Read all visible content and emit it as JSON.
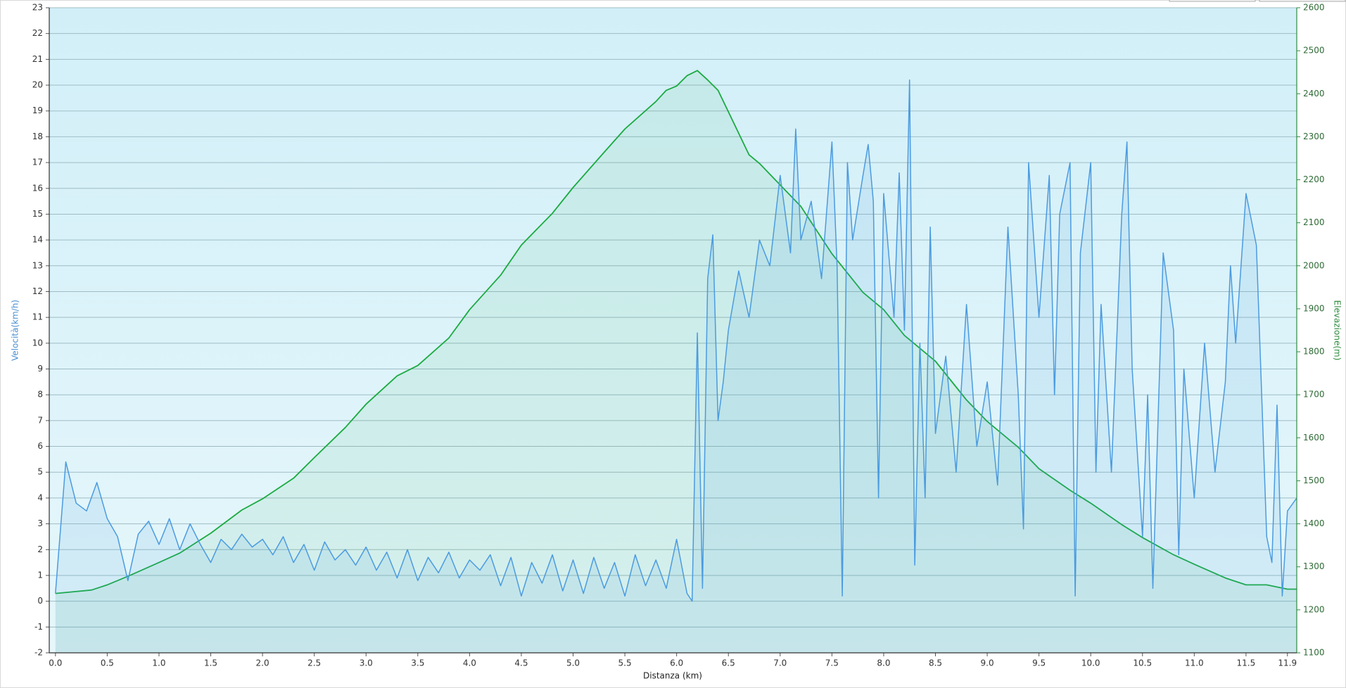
{
  "chart_data": {
    "type": "line",
    "xlabel": "Distanza  (km)",
    "ylabel": "Velocità(km/h)",
    "y2label": "Elevazione(m)",
    "xlim": [
      -0.06,
      11.99
    ],
    "ylim": [
      -2,
      23
    ],
    "y2lim": [
      1100,
      2600
    ],
    "xticks": [
      {
        "value": 0,
        "label": "0.0"
      },
      0.5,
      {
        "value": 1,
        "label": "1.0"
      },
      1.5,
      {
        "value": 2,
        "label": "2.0"
      },
      2.5,
      {
        "value": 3,
        "label": "3.0"
      },
      3.5,
      {
        "value": 4,
        "label": "4.0"
      },
      4.5,
      {
        "value": 5,
        "label": "5.0"
      },
      5.5,
      {
        "value": 6,
        "label": "6.0"
      },
      6.5,
      {
        "value": 7,
        "label": "7.0"
      },
      7.5,
      {
        "value": 8,
        "label": "8.0"
      },
      8.5,
      {
        "value": 9,
        "label": "9.0"
      },
      9.5,
      {
        "value": 10,
        "label": "10.0"
      },
      10.5,
      {
        "value": 11,
        "label": "11.0"
      },
      11.5,
      11.9
    ],
    "yticks": [
      -2,
      -1,
      0,
      1,
      2,
      3,
      4,
      5,
      6,
      7,
      8,
      9,
      10,
      11,
      12,
      13,
      14,
      15,
      16,
      17,
      18,
      19,
      20,
      21,
      22,
      23
    ],
    "y2ticks": [
      1100,
      1200,
      1300,
      1400,
      1500,
      1600,
      1700,
      1800,
      1900,
      2000,
      2100,
      2200,
      2300,
      2400,
      2500,
      2600
    ],
    "grid": true,
    "series": [
      {
        "color": "#4b9be0",
        "x": [
          0.0,
          0.1,
          0.2,
          0.3,
          0.4,
          0.5,
          0.6,
          0.7,
          0.8,
          0.9,
          1.0,
          1.1,
          1.2,
          1.3,
          1.4,
          1.5,
          1.6,
          1.7,
          1.8,
          1.9,
          2.0,
          2.1,
          2.2,
          2.3,
          2.4,
          2.5,
          2.6,
          2.7,
          2.8,
          2.9,
          3.0,
          3.1,
          3.2,
          3.3,
          3.4,
          3.5,
          3.6,
          3.7,
          3.8,
          3.9,
          4.0,
          4.1,
          4.2,
          4.3,
          4.4,
          4.5,
          4.6,
          4.7,
          4.8,
          4.9,
          5.0,
          5.1,
          5.2,
          5.3,
          5.4,
          5.5,
          5.6,
          5.7,
          5.8,
          5.9,
          6.0,
          6.1,
          6.15,
          6.2,
          6.25,
          6.3,
          6.35,
          6.4,
          6.45,
          6.5,
          6.6,
          6.7,
          6.8,
          6.9,
          7.0,
          7.1,
          7.15,
          7.2,
          7.3,
          7.4,
          7.5,
          7.55,
          7.6,
          7.65,
          7.7,
          7.8,
          7.85,
          7.9,
          7.95,
          8.0,
          8.1,
          8.15,
          8.2,
          8.25,
          8.3,
          8.35,
          8.4,
          8.45,
          8.5,
          8.6,
          8.7,
          8.8,
          8.9,
          9.0,
          9.1,
          9.2,
          9.3,
          9.35,
          9.4,
          9.5,
          9.6,
          9.65,
          9.7,
          9.8,
          9.85,
          9.9,
          10.0,
          10.05,
          10.1,
          10.2,
          10.3,
          10.35,
          10.4,
          10.5,
          10.55,
          10.6,
          10.7,
          10.8,
          10.85,
          10.9,
          11.0,
          11.1,
          11.2,
          11.3,
          11.35,
          11.4,
          11.5,
          11.6,
          11.7,
          11.75,
          11.8,
          11.85,
          11.9,
          11.99
        ],
        "values": [
          0.3,
          5.4,
          3.8,
          3.5,
          4.6,
          3.2,
          2.5,
          0.8,
          2.6,
          3.1,
          2.2,
          3.2,
          2.0,
          3.0,
          2.2,
          1.5,
          2.4,
          2.0,
          2.6,
          2.1,
          2.4,
          1.8,
          2.5,
          1.5,
          2.2,
          1.2,
          2.3,
          1.6,
          2.0,
          1.4,
          2.1,
          1.2,
          1.9,
          0.9,
          2.0,
          0.8,
          1.7,
          1.1,
          1.9,
          0.9,
          1.6,
          1.2,
          1.8,
          0.6,
          1.7,
          0.2,
          1.5,
          0.7,
          1.8,
          0.4,
          1.6,
          0.3,
          1.7,
          0.5,
          1.5,
          0.2,
          1.8,
          0.6,
          1.6,
          0.5,
          2.4,
          0.3,
          0.0,
          10.4,
          0.5,
          12.5,
          14.2,
          7.0,
          8.5,
          10.5,
          12.8,
          11.0,
          14.0,
          13.0,
          16.5,
          13.5,
          18.3,
          14.0,
          15.5,
          12.5,
          17.8,
          13.0,
          0.2,
          17.0,
          14.0,
          16.5,
          17.7,
          15.5,
          4.0,
          15.8,
          11.0,
          16.6,
          10.5,
          20.2,
          1.4,
          10.0,
          4.0,
          14.5,
          6.5,
          9.5,
          5.0,
          11.5,
          6.0,
          8.5,
          4.5,
          14.5,
          8.0,
          2.8,
          17.0,
          11.0,
          16.5,
          8.0,
          15.0,
          17.0,
          0.2,
          13.5,
          17.0,
          5.0,
          11.5,
          5.0,
          15.0,
          17.8,
          9.0,
          2.5,
          8.0,
          0.5,
          13.5,
          10.5,
          1.8,
          9.0,
          4.0,
          10.0,
          5.0,
          8.5,
          13.0,
          10.0,
          15.8,
          13.8,
          2.5,
          1.5,
          7.6,
          0.2,
          3.5,
          4.0
        ]
      },
      {
        "color": "#1aaa40",
        "axis": "y2",
        "x": [
          0.0,
          0.35,
          0.5,
          0.7,
          1.0,
          1.2,
          1.5,
          1.8,
          2.0,
          2.3,
          2.5,
          2.8,
          3.0,
          3.3,
          3.5,
          3.8,
          4.0,
          4.3,
          4.5,
          4.8,
          5.0,
          5.3,
          5.5,
          5.8,
          5.9,
          6.0,
          6.1,
          6.2,
          6.3,
          6.4,
          6.5,
          6.7,
          6.8,
          7.0,
          7.2,
          7.5,
          7.8,
          8.0,
          8.2,
          8.5,
          8.8,
          9.0,
          9.3,
          9.5,
          9.8,
          10.0,
          10.3,
          10.5,
          10.8,
          11.0,
          11.3,
          11.5,
          11.7,
          11.9,
          11.99
        ],
        "values": [
          1238,
          1246,
          1258,
          1278,
          1310,
          1332,
          1378,
          1432,
          1458,
          1506,
          1554,
          1624,
          1678,
          1744,
          1768,
          1832,
          1898,
          1978,
          2048,
          2122,
          2182,
          2264,
          2318,
          2382,
          2408,
          2418,
          2442,
          2454,
          2432,
          2408,
          2358,
          2258,
          2238,
          2188,
          2138,
          2028,
          1938,
          1898,
          1838,
          1778,
          1688,
          1638,
          1578,
          1528,
          1478,
          1448,
          1398,
          1368,
          1328,
          1306,
          1274,
          1258,
          1258,
          1248,
          1248
        ]
      }
    ]
  }
}
